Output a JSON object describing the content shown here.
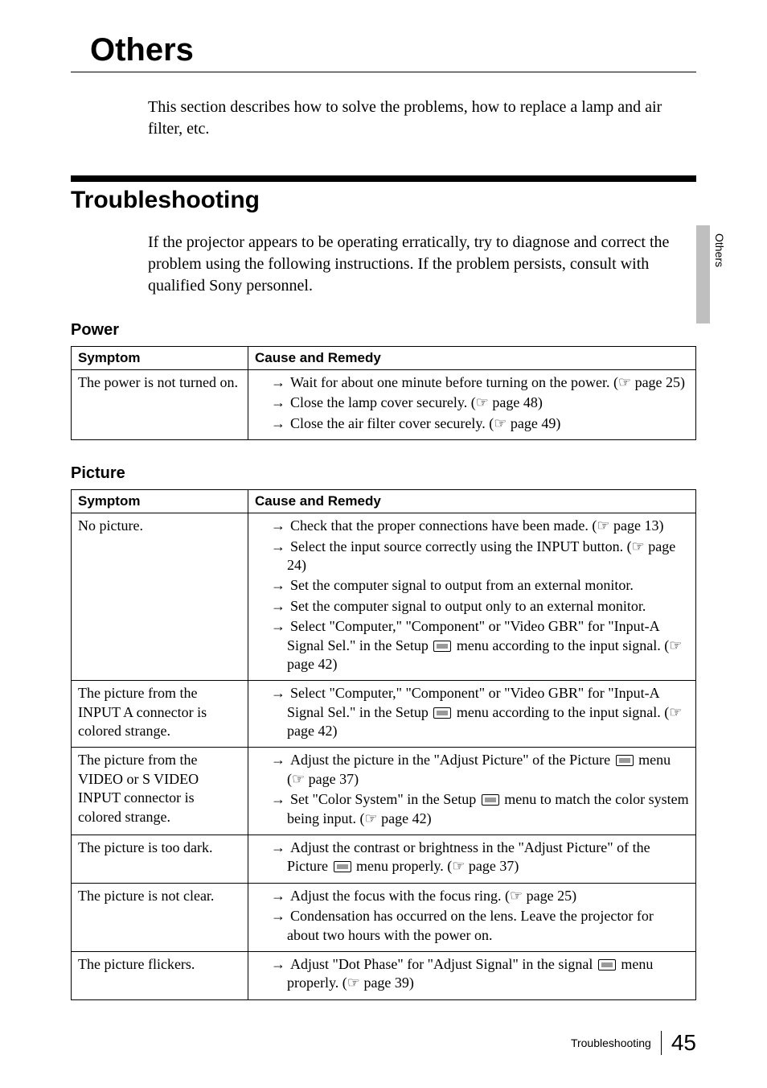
{
  "chapter_title": "Others",
  "chapter_intro": "This section describes how to solve the problems, how to replace a lamp and air filter, etc.",
  "section_title": "Troubleshooting",
  "section_intro": "If the projector appears to be operating erratically, try to diagnose and correct the problem using the following instructions. If the problem persists, consult with qualified Sony personnel.",
  "side_tab_label": "Others",
  "tables": {
    "power": {
      "heading": "Power",
      "col_symptom": "Symptom",
      "col_remedy": "Cause and Remedy",
      "rows": [
        {
          "symptom": "The power is not turned on.",
          "remedies": [
            "Wait for about one minute before turning on the power. (☞ page 25)",
            "Close the lamp cover securely. (☞ page 48)",
            "Close the air filter cover securely. (☞ page 49)"
          ]
        }
      ]
    },
    "picture": {
      "heading": "Picture",
      "col_symptom": "Symptom",
      "col_remedy": "Cause and Remedy",
      "rows": [
        {
          "symptom": "No picture.",
          "remedies": [
            "Check that the proper connections have been made. (☞ page 13)",
            "Select the input source correctly using the INPUT button. (☞ page 24)",
            "Set the computer signal to output from an external monitor.",
            "Set the computer signal to output only to an external monitor.",
            "Select \"Computer,\" \"Component\" or \"Video GBR\" for \"Input-A Signal Sel.\" in the Setup ▢ menu according to the input signal. (☞ page 42)"
          ]
        },
        {
          "symptom": "The picture from the INPUT A connector is colored strange.",
          "remedies": [
            "Select \"Computer,\" \"Component\" or \"Video GBR\" for \"Input-A Signal Sel.\" in the Setup ▢ menu according to the input signal. (☞ page 42)"
          ]
        },
        {
          "symptom": "The picture from the VIDEO or S VIDEO INPUT connector is colored strange.",
          "remedies": [
            "Adjust the picture in the \"Adjust Picture\" of the Picture ▢ menu (☞ page 37)",
            "Set \"Color System\" in the Setup ▢ menu to match the color system being input. (☞ page 42)"
          ]
        },
        {
          "symptom": "The picture is too dark.",
          "remedies": [
            "Adjust the contrast or brightness in the \"Adjust Picture\" of the Picture ▢ menu properly. (☞ page 37)"
          ]
        },
        {
          "symptom": "The picture is not clear.",
          "remedies": [
            "Adjust the focus with the focus ring. (☞ page 25)",
            "Condensation has occurred on the lens. Leave the projector for about two hours with the power on."
          ]
        },
        {
          "symptom": "The picture flickers.",
          "remedies": [
            "Adjust \"Dot Phase\" for \"Adjust Signal\" in the signal ▢ menu properly. (☞ page 39)"
          ]
        }
      ]
    }
  },
  "footer": {
    "label": "Troubleshooting",
    "page": "45"
  }
}
